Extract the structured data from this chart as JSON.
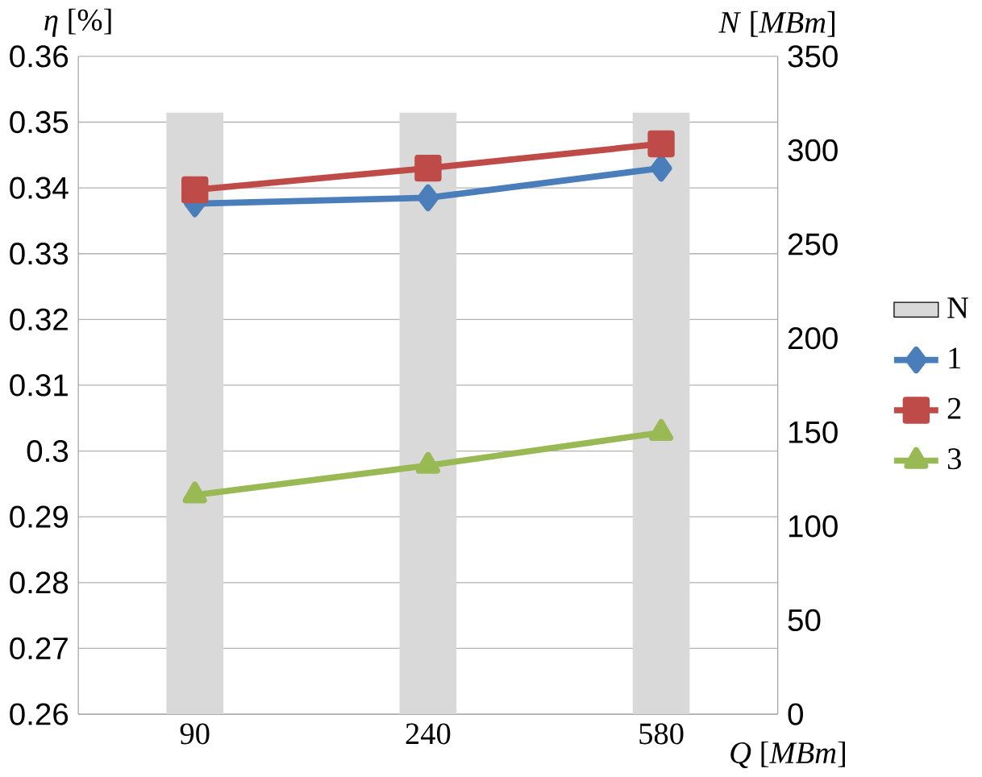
{
  "chart_data": {
    "type": "line",
    "xlabel": "*Q* [*MBm*]",
    "ylabel": "*η* [%]",
    "y2label": "*N* [*MBm*]",
    "categories": [
      "90",
      "240",
      "580"
    ],
    "series": [
      {
        "name": "N",
        "type": "bar",
        "axis": "y2",
        "color": "#d9d9d9",
        "values": [
          320,
          320,
          320
        ]
      },
      {
        "name": "1",
        "color": "#4a7ebb",
        "marker": "diamond",
        "values": [
          0.3376,
          0.3385,
          0.343
        ]
      },
      {
        "name": "2",
        "color": "#be4b48",
        "marker": "square",
        "values": [
          0.3397,
          0.343,
          0.3467
        ]
      },
      {
        "name": "3",
        "color": "#98b954",
        "marker": "triangle",
        "values": [
          0.2933,
          0.2978,
          0.3028
        ]
      }
    ],
    "ylim": [
      0.26,
      0.36
    ],
    "yticks": [
      0.26,
      0.27,
      0.28,
      0.29,
      0.3,
      0.31,
      0.32,
      0.33,
      0.34,
      0.35,
      0.36
    ],
    "y2lim": [
      0,
      350
    ],
    "y2ticks": [
      0,
      50,
      100,
      150,
      200,
      250,
      300,
      350
    ],
    "grid": "y",
    "legend": "right"
  }
}
